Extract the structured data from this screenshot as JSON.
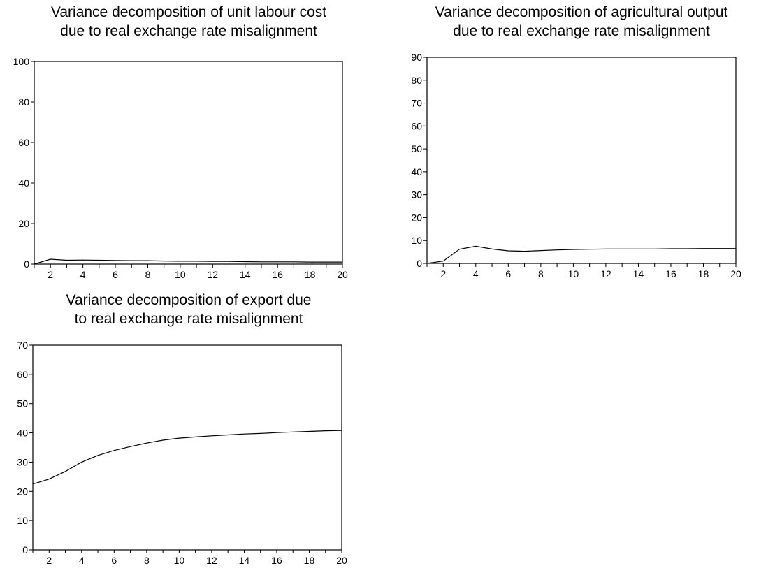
{
  "chart_data": [
    {
      "type": "line",
      "title_lines": [
        "Variance decomposition of unit labour cost",
        "due to real exchange rate misalignment"
      ],
      "x": [
        1,
        2,
        3,
        4,
        5,
        6,
        7,
        8,
        9,
        10,
        11,
        12,
        13,
        14,
        15,
        16,
        17,
        18,
        19,
        20
      ],
      "x_ticks": [
        "2",
        "4",
        "6",
        "8",
        "10",
        "12",
        "14",
        "16",
        "18",
        "20"
      ],
      "y_ticks": [
        "0",
        "20",
        "40",
        "60",
        "80",
        "100"
      ],
      "ylim": [
        0,
        100
      ],
      "series": [
        {
          "values": [
            0,
            2.4,
            1.9,
            2.0,
            1.9,
            1.8,
            1.7,
            1.7,
            1.5,
            1.4,
            1.4,
            1.3,
            1.3,
            1.2,
            1.1,
            1.1,
            1.1,
            1.0,
            1.0,
            1.0
          ]
        }
      ]
    },
    {
      "type": "line",
      "title_lines": [
        "Variance decomposition of agricultural output",
        "due to real exchange rate misalignment"
      ],
      "x": [
        1,
        2,
        3,
        4,
        5,
        6,
        7,
        8,
        9,
        10,
        11,
        12,
        13,
        14,
        15,
        16,
        17,
        18,
        19,
        20
      ],
      "x_ticks": [
        "2",
        "4",
        "6",
        "8",
        "10",
        "12",
        "14",
        "16",
        "18",
        "20"
      ],
      "y_ticks": [
        "0",
        "10",
        "20",
        "30",
        "40",
        "50",
        "60",
        "70",
        "80",
        "90"
      ],
      "ylim": [
        0,
        90
      ],
      "series": [
        {
          "values": [
            0,
            1.0,
            6.2,
            7.5,
            6.3,
            5.5,
            5.3,
            5.6,
            5.9,
            6.1,
            6.2,
            6.3,
            6.3,
            6.3,
            6.3,
            6.4,
            6.4,
            6.5,
            6.5,
            6.5
          ]
        }
      ]
    },
    {
      "type": "line",
      "title_lines": [
        "Variance decomposition of export due",
        "to real exchange rate misalignment"
      ],
      "x": [
        1,
        2,
        3,
        4,
        5,
        6,
        7,
        8,
        9,
        10,
        11,
        12,
        13,
        14,
        15,
        16,
        17,
        18,
        19,
        20
      ],
      "x_ticks": [
        "2",
        "4",
        "6",
        "8",
        "10",
        "12",
        "14",
        "16",
        "18",
        "20"
      ],
      "y_ticks": [
        "0",
        "10",
        "20",
        "30",
        "40",
        "50",
        "60",
        "70"
      ],
      "ylim": [
        0,
        70
      ],
      "series": [
        {
          "values": [
            22.5,
            24.2,
            26.8,
            30.0,
            32.3,
            34.0,
            35.3,
            36.5,
            37.5,
            38.2,
            38.6,
            39.0,
            39.3,
            39.6,
            39.8,
            40.1,
            40.3,
            40.5,
            40.7,
            40.8
          ]
        }
      ]
    }
  ]
}
